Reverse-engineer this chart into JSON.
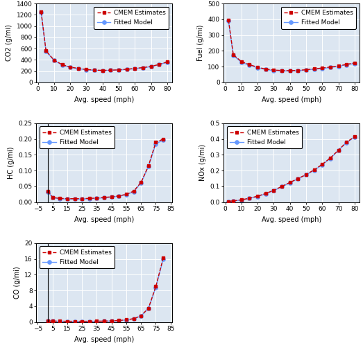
{
  "panels": [
    {
      "ylabel": "CO2 (g/mi)",
      "xlabel": "Avg. speed (mph)",
      "xlim": [
        -1,
        83
      ],
      "ylim": [
        0,
        1400
      ],
      "yticks": [
        0,
        200,
        400,
        600,
        800,
        1000,
        1200,
        1400
      ],
      "xticks": [
        0,
        10,
        20,
        30,
        40,
        50,
        60,
        70,
        80
      ],
      "cmem_x": [
        2,
        5,
        10,
        15,
        20,
        25,
        30,
        35,
        40,
        45,
        50,
        55,
        60,
        65,
        70,
        75,
        80
      ],
      "cmem_y": [
        1250,
        560,
        395,
        315,
        270,
        248,
        228,
        218,
        212,
        216,
        222,
        232,
        247,
        262,
        283,
        318,
        362
      ],
      "fitted_x": [
        2,
        5,
        10,
        15,
        20,
        25,
        30,
        35,
        40,
        45,
        50,
        55,
        60,
        65,
        70,
        75,
        80
      ],
      "fitted_y": [
        1240,
        550,
        388,
        308,
        265,
        243,
        224,
        213,
        207,
        213,
        219,
        229,
        244,
        259,
        279,
        314,
        358
      ],
      "legend_loc": "upper right"
    },
    {
      "ylabel": "Fuel (g/mi)",
      "xlabel": "Avg. speed (mph)",
      "xlim": [
        -1,
        83
      ],
      "ylim": [
        0,
        500
      ],
      "yticks": [
        0,
        100,
        200,
        300,
        400,
        500
      ],
      "xticks": [
        0,
        10,
        20,
        30,
        40,
        50,
        60,
        70,
        80
      ],
      "cmem_x": [
        2,
        5,
        10,
        15,
        20,
        25,
        30,
        35,
        40,
        45,
        50,
        55,
        60,
        65,
        70,
        75,
        80
      ],
      "cmem_y": [
        395,
        175,
        132,
        112,
        96,
        84,
        78,
        75,
        74,
        76,
        80,
        85,
        91,
        97,
        104,
        114,
        123
      ],
      "fitted_x": [
        2,
        5,
        10,
        15,
        20,
        25,
        30,
        35,
        40,
        45,
        50,
        55,
        60,
        65,
        70,
        75,
        80
      ],
      "fitted_y": [
        390,
        170,
        128,
        108,
        93,
        81,
        75,
        73,
        72,
        74,
        78,
        83,
        88,
        94,
        101,
        111,
        120
      ],
      "legend_loc": "upper right"
    },
    {
      "ylabel": "HC (g/mi)",
      "xlabel": "Avg. speed (mph)",
      "xlim": [
        -6,
        86
      ],
      "ylim": [
        0,
        0.25
      ],
      "yticks": [
        0.0,
        0.05,
        0.1,
        0.15,
        0.2,
        0.25
      ],
      "xticks": [
        -5,
        5,
        15,
        25,
        35,
        45,
        55,
        65,
        75,
        85
      ],
      "cmem_x": [
        2,
        5,
        10,
        15,
        20,
        25,
        30,
        35,
        40,
        45,
        50,
        55,
        60,
        65,
        70,
        75,
        80
      ],
      "cmem_y": [
        0.035,
        0.015,
        0.012,
        0.011,
        0.011,
        0.011,
        0.012,
        0.013,
        0.015,
        0.017,
        0.02,
        0.025,
        0.035,
        0.063,
        0.115,
        0.19,
        0.2
      ],
      "fitted_x": [
        2,
        5,
        10,
        15,
        20,
        25,
        30,
        35,
        40,
        45,
        50,
        55,
        60,
        65,
        70,
        75,
        80
      ],
      "fitted_y": [
        0.033,
        0.014,
        0.011,
        0.01,
        0.01,
        0.01,
        0.011,
        0.012,
        0.014,
        0.016,
        0.019,
        0.024,
        0.033,
        0.061,
        0.113,
        0.185,
        0.197
      ],
      "legend_loc": "upper left",
      "vline_x": 2
    },
    {
      "ylabel": "NOx (g/mi)",
      "xlabel": "Avg. speed (mph)",
      "xlim": [
        -1,
        83
      ],
      "ylim": [
        0,
        0.5
      ],
      "yticks": [
        0.0,
        0.1,
        0.2,
        0.3,
        0.4,
        0.5
      ],
      "xticks": [
        0,
        10,
        20,
        30,
        40,
        50,
        60,
        70,
        80
      ],
      "cmem_x": [
        2,
        5,
        10,
        15,
        20,
        25,
        30,
        35,
        40,
        45,
        50,
        55,
        60,
        65,
        70,
        75,
        80
      ],
      "cmem_y": [
        0.005,
        0.008,
        0.015,
        0.025,
        0.038,
        0.055,
        0.075,
        0.1,
        0.125,
        0.15,
        0.175,
        0.205,
        0.24,
        0.28,
        0.33,
        0.38,
        0.415
      ],
      "fitted_x": [
        2,
        5,
        10,
        15,
        20,
        25,
        30,
        35,
        40,
        45,
        50,
        55,
        60,
        65,
        70,
        75,
        80
      ],
      "fitted_y": [
        0.004,
        0.007,
        0.014,
        0.024,
        0.036,
        0.053,
        0.073,
        0.098,
        0.123,
        0.148,
        0.173,
        0.202,
        0.237,
        0.277,
        0.328,
        0.377,
        0.412
      ],
      "legend_loc": "upper left"
    },
    {
      "ylabel": "CO (g/mi)",
      "xlabel": "Avg. speed (mph)",
      "xlim": [
        -6,
        86
      ],
      "ylim": [
        0,
        20.0
      ],
      "yticks": [
        0.0,
        4.0,
        8.0,
        12.0,
        16.0,
        20.0
      ],
      "xticks": [
        -5,
        5,
        15,
        25,
        35,
        45,
        55,
        65,
        75,
        85
      ],
      "cmem_x": [
        2,
        5,
        10,
        15,
        20,
        25,
        30,
        35,
        40,
        45,
        50,
        55,
        60,
        65,
        70,
        75,
        80
      ],
      "cmem_y": [
        0.25,
        0.22,
        0.2,
        0.18,
        0.18,
        0.18,
        0.18,
        0.2,
        0.22,
        0.28,
        0.38,
        0.55,
        0.85,
        1.6,
        3.5,
        9.0,
        16.2
      ],
      "fitted_x": [
        2,
        5,
        10,
        15,
        20,
        25,
        30,
        35,
        40,
        45,
        50,
        55,
        60,
        65,
        70,
        75,
        80
      ],
      "fitted_y": [
        0.23,
        0.2,
        0.18,
        0.16,
        0.16,
        0.16,
        0.16,
        0.18,
        0.2,
        0.26,
        0.36,
        0.53,
        0.82,
        1.55,
        3.4,
        8.8,
        15.9
      ],
      "legend_loc": "upper left",
      "vline_x": 2
    }
  ],
  "cmem_color": "#cc0000",
  "fitted_color": "#6699ff",
  "bg_color": "#dce6f1",
  "grid_color": "white",
  "legend_label_cmem": "CMEM Estimates",
  "legend_label_fitted": "Fitted Model",
  "figsize": [
    5.23,
    5.05
  ],
  "dpi": 100
}
